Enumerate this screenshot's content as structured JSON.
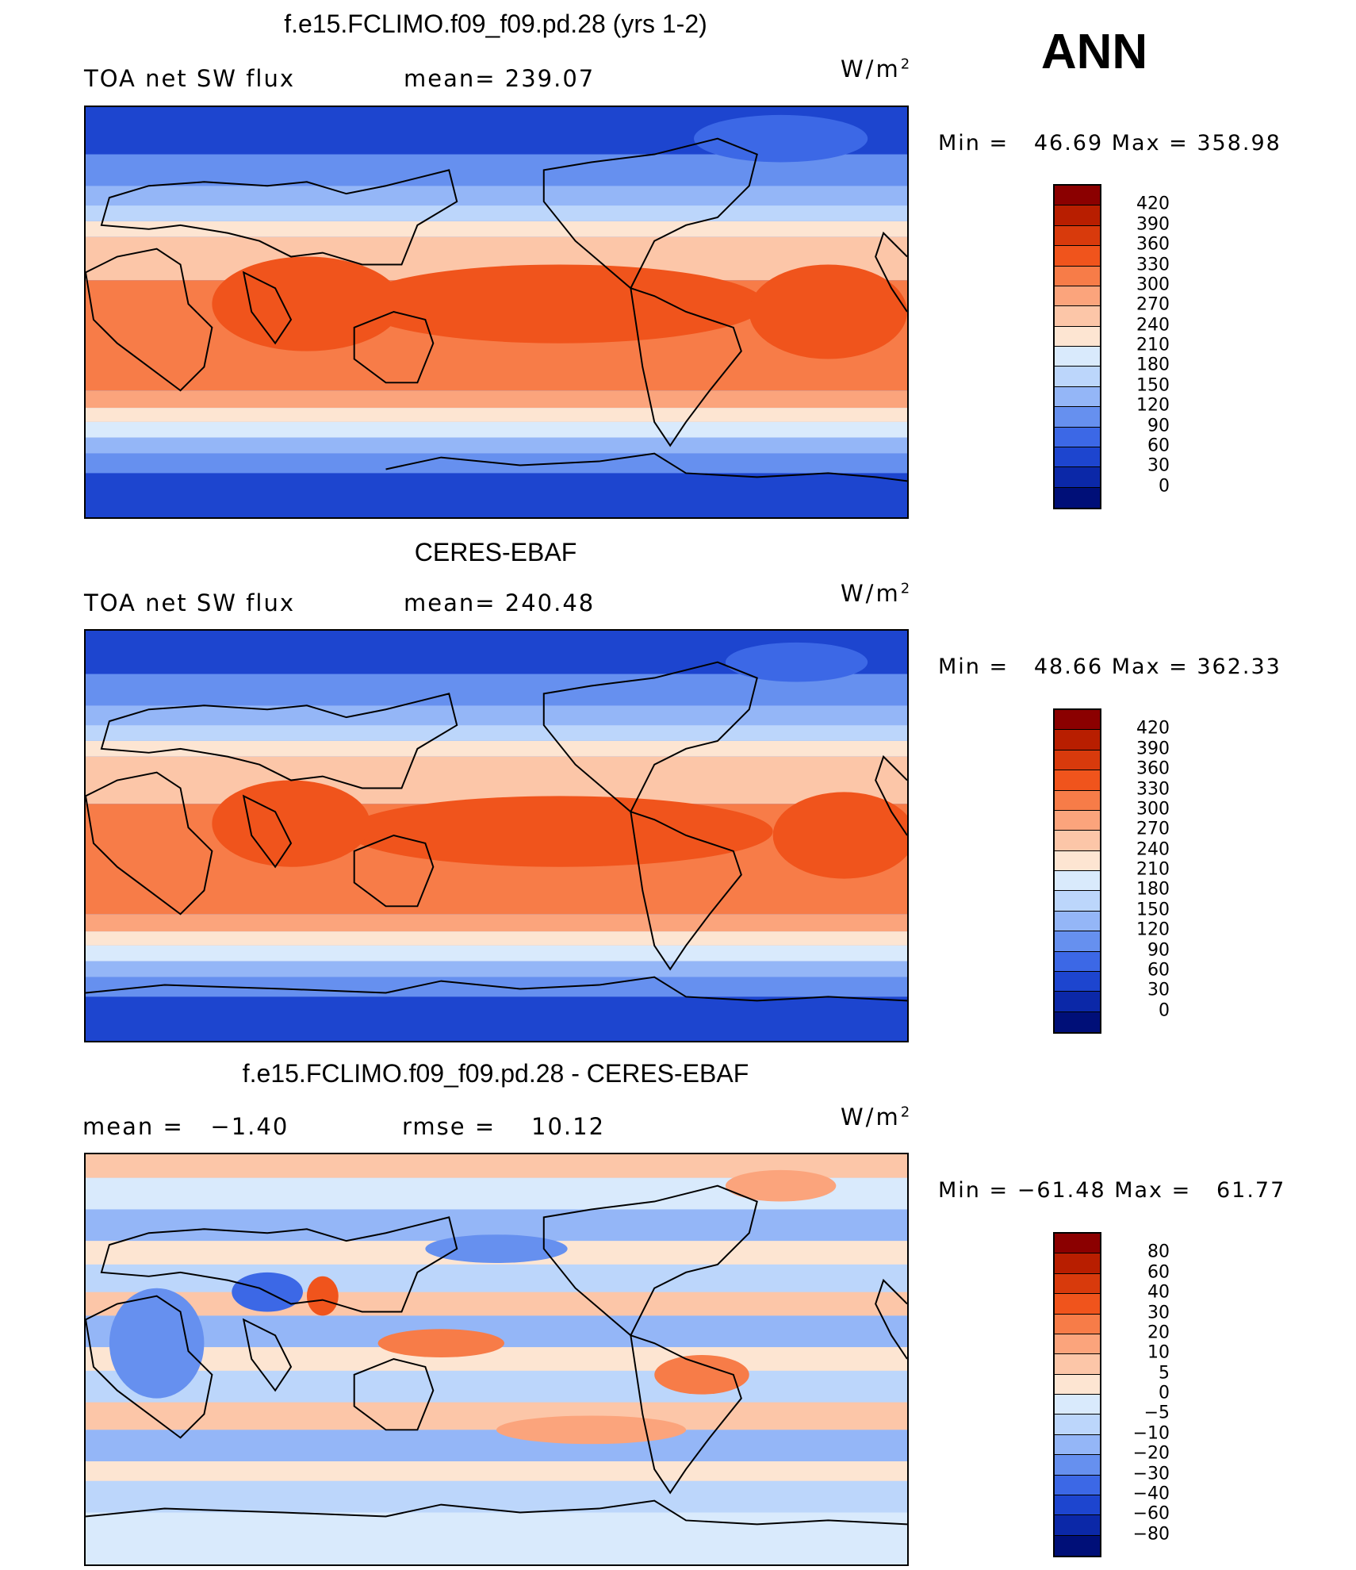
{
  "season": "ANN",
  "panels": [
    {
      "title": "f.e15.FCLIMO.f09_f09.pd.28 (yrs 1-2)",
      "left_label": "TOA net SW flux",
      "center_label": "mean= 239.07",
      "units": "W/m",
      "units_exp": "2",
      "minmax": "Min =   46.69 Max = 358.98"
    },
    {
      "title": "CERES-EBAF",
      "left_label": "TOA net SW flux",
      "center_label": "mean= 240.48",
      "units": "W/m",
      "units_exp": "2",
      "minmax": "Min =   48.66 Max = 362.33"
    },
    {
      "title": "f.e15.FCLIMO.f09_f09.pd.28 - CERES-EBAF",
      "left_label": "mean =   −1.40",
      "center_label": "rmse =    10.12",
      "units": "W/m",
      "units_exp": "2",
      "minmax": "Min = −61.48 Max =   61.77"
    }
  ],
  "colorbars": {
    "abs": {
      "labels": [
        "420",
        "390",
        "360",
        "330",
        "300",
        "270",
        "240",
        "210",
        "180",
        "150",
        "120",
        "90",
        "60",
        "30",
        "0"
      ],
      "colors": [
        "#8b0000",
        "#b81e00",
        "#d83a0c",
        "#f0541c",
        "#f77c48",
        "#fba47c",
        "#fcc6a8",
        "#fde5d2",
        "#d9eafc",
        "#bcd6fb",
        "#94b6f7",
        "#6690ef",
        "#3c68e6",
        "#1d45cf",
        "#0b28a8",
        "#000f78"
      ]
    },
    "diff": {
      "labels": [
        "80",
        "60",
        "40",
        "30",
        "20",
        "10",
        "5",
        "0",
        "−5",
        "−10",
        "−20",
        "−30",
        "−40",
        "−60",
        "−80"
      ],
      "colors": [
        "#8b0000",
        "#b81e00",
        "#d83a0c",
        "#f0541c",
        "#f77c48",
        "#fba47c",
        "#fcc6a8",
        "#fde5d2",
        "#d9eafc",
        "#bcd6fb",
        "#94b6f7",
        "#6690ef",
        "#3c68e6",
        "#1d45cf",
        "#0b28a8",
        "#000f78"
      ]
    }
  }
}
